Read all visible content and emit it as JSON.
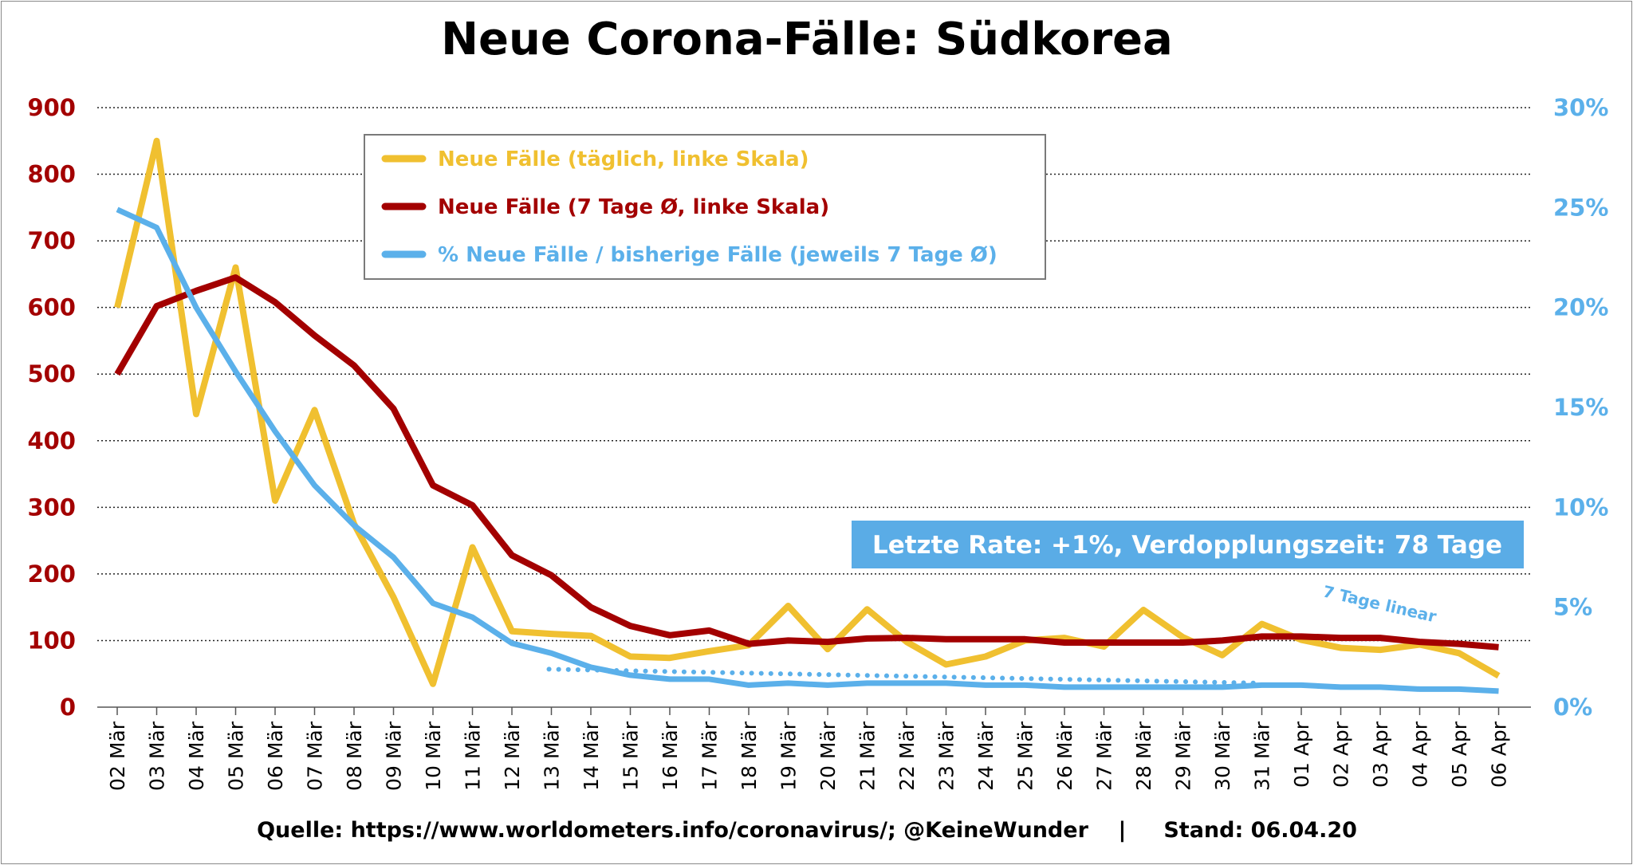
{
  "chart_data": {
    "type": "line",
    "title": "Neue Corona-Fälle: Südkorea",
    "categories": [
      "02 Mär",
      "03 Mär",
      "04 Mär",
      "05 Mär",
      "06 Mär",
      "07 Mär",
      "08 Mär",
      "09 Mär",
      "10 Mär",
      "11 Mär",
      "12 Mär",
      "13 Mär",
      "14 Mär",
      "15 Mär",
      "16 Mär",
      "17 Mär",
      "18 Mär",
      "19 Mär",
      "20 Mär",
      "21 Mär",
      "22 Mär",
      "23 Mär",
      "24 Mär",
      "25 Mär",
      "26 Mär",
      "27 Mär",
      "28 Mär",
      "29 Mär",
      "30 Mär",
      "31 Mär",
      "01 Apr",
      "02 Apr",
      "03 Apr",
      "04 Apr",
      "05 Apr",
      "06 Apr"
    ],
    "y_left": {
      "min": 0,
      "max": 900,
      "ticks": [
        "0",
        "100",
        "200",
        "300",
        "400",
        "500",
        "600",
        "700",
        "800",
        "900"
      ]
    },
    "y_right": {
      "min": 0,
      "max": 30,
      "ticks": [
        "0%",
        "5%",
        "10%",
        "15%",
        "20%",
        "25%",
        "30%"
      ]
    },
    "grid": "horizontal dotted",
    "series": [
      {
        "name": "Neue Fälle (täglich, linke Skala)",
        "axis": "left",
        "color": "#f0c030",
        "values": [
          600,
          850,
          440,
          660,
          310,
          446,
          275,
          165,
          35,
          240,
          114,
          110,
          107,
          76,
          74,
          84,
          93,
          152,
          87,
          147,
          98,
          64,
          76,
          100,
          104,
          91,
          146,
          105,
          78,
          125,
          101,
          89,
          86,
          94,
          81,
          47
        ]
      },
      {
        "name": "Neue Fälle (7 Tage Ø, linke Skala)",
        "axis": "left",
        "color": "#a30000",
        "values": [
          500,
          602,
          625,
          645,
          608,
          558,
          513,
          448,
          333,
          303,
          228,
          198,
          150,
          122,
          108,
          115,
          95,
          100,
          98,
          103,
          104,
          102,
          102,
          102,
          97,
          97,
          97,
          97,
          100,
          106,
          106,
          104,
          104,
          98,
          95,
          90
        ]
      },
      {
        "name": "% Neue Fälle / bisherige Fälle (jeweils 7 Tage Ø)",
        "axis": "right",
        "color": "#5bb0ea",
        "values": [
          24.9,
          24.0,
          20.0,
          16.8,
          13.8,
          11.1,
          9.1,
          7.5,
          5.2,
          4.5,
          3.2,
          2.7,
          2.0,
          1.6,
          1.4,
          1.4,
          1.1,
          1.2,
          1.1,
          1.2,
          1.2,
          1.2,
          1.1,
          1.1,
          1.0,
          1.0,
          1.0,
          1.0,
          1.0,
          1.1,
          1.1,
          1.0,
          1.0,
          0.9,
          0.9,
          0.8
        ]
      },
      {
        "name": "7 Tage linear",
        "axis": "right",
        "style": "dotted",
        "color": "#5bb0ea",
        "x": [
          "13 Mär",
          "31 Mär"
        ],
        "values": [
          1.9,
          1.2
        ]
      }
    ],
    "annotations": {
      "rate_box": "Letzte Rate: +1%, Verdopplungszeit: 78 Tage",
      "trend_label": "7 Tage linear"
    },
    "legend_position": "top-center"
  },
  "footer": {
    "source": "Quelle: https://www.worldometers.info/coronavirus/; @KeineWunder    |     Stand: 06.04.20"
  }
}
